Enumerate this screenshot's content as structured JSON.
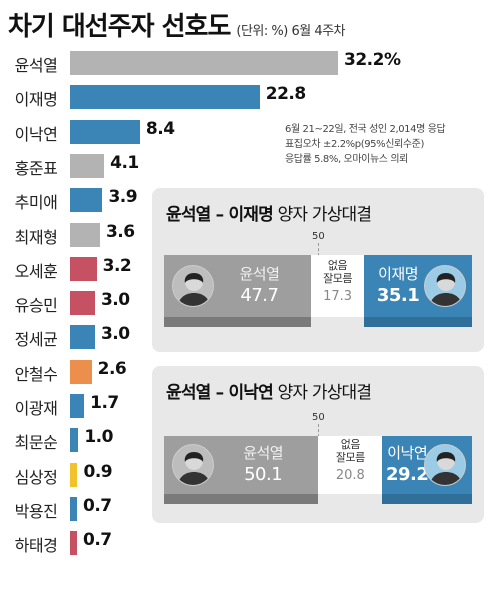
{
  "header": {
    "title": "차기 대선주자 선호도",
    "subtitle": "(단위: %) 6월 4주차"
  },
  "chart_data": {
    "type": "bar",
    "orientation": "horizontal",
    "title": "차기 대선주자 선호도",
    "unit": "%",
    "categories": [
      "윤석열",
      "이재명",
      "이낙연",
      "홍준표",
      "추미애",
      "최재형",
      "오세훈",
      "유승민",
      "정세균",
      "안철수",
      "이광재",
      "최문순",
      "심상정",
      "박용진",
      "하태경"
    ],
    "values": [
      32.2,
      22.8,
      8.4,
      4.1,
      3.9,
      3.6,
      3.2,
      3.0,
      3.0,
      2.6,
      1.7,
      1.0,
      0.9,
      0.7,
      0.7
    ],
    "labels": [
      "32.2%",
      "22.8",
      "8.4",
      "4.1",
      "3.9",
      "3.6",
      "3.2",
      "3.0",
      "3.0",
      "2.6",
      "1.7",
      "1.0",
      "0.9",
      "0.7",
      "0.7"
    ],
    "colors": [
      "#b3b3b3",
      "#3a84b6",
      "#3a84b6",
      "#b3b3b3",
      "#3a84b6",
      "#b3b3b3",
      "#c65163",
      "#c65163",
      "#3a84b6",
      "#ec8f4d",
      "#3a84b6",
      "#3a84b6",
      "#f2c22b",
      "#3a84b6",
      "#c65163"
    ]
  },
  "survey_note": [
    "6월 21~22일, 전국 성인 2,014명 응답",
    "표집오차 ±2.2%p(95%신뢰수준)",
    "응답률 5.8%, 오마이뉴스 의뢰"
  ],
  "matchups": [
    {
      "title_bold": "윤석열 – 이재명",
      "title_rest": " 양자 가상대결",
      "midpoint_label": "50",
      "left": {
        "name": "윤석열",
        "value": 47.7,
        "label": "47.7",
        "color": "#9e9e9e"
      },
      "undecided": {
        "name": "없음\n잘모름",
        "value": 17.3,
        "label": "17.3"
      },
      "right": {
        "name": "이재명",
        "value": 35.1,
        "label": "35.1",
        "color": "#3a84b6"
      }
    },
    {
      "title_bold": "윤석열 – 이낙연",
      "title_rest": " 양자 가상대결",
      "midpoint_label": "50",
      "left": {
        "name": "윤석열",
        "value": 50.1,
        "label": "50.1",
        "color": "#9e9e9e"
      },
      "undecided": {
        "name": "없음\n잘모름",
        "value": 20.8,
        "label": "20.8"
      },
      "right": {
        "name": "이낙연",
        "value": 29.2,
        "label": "29.2",
        "color": "#3a84b6"
      }
    }
  ]
}
